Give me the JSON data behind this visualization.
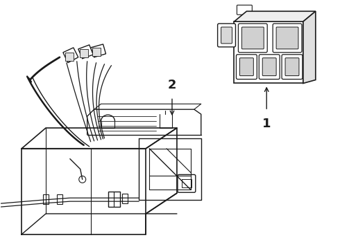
{
  "bg_color": "#ffffff",
  "line_color": "#1a1a1a",
  "line_width": 1.0,
  "fig_width": 4.9,
  "fig_height": 3.6,
  "dpi": 100,
  "label_1_text": "1",
  "label_2_text": "2"
}
